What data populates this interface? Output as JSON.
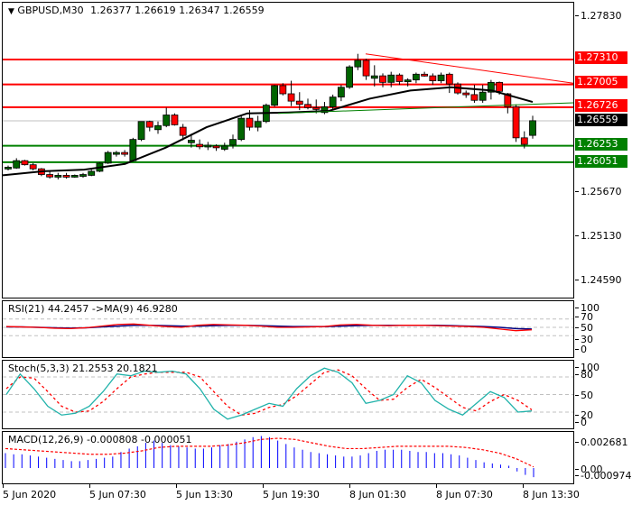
{
  "header": {
    "symbol": "GBPUSD,M30",
    "ohlc": "1.26377 1.26619 1.26347 1.26559",
    "menu_icon": "triangle-down-icon"
  },
  "colors": {
    "bull": "#006400",
    "bear": "#ff0000",
    "resistance": "#ff0000",
    "support": "#008000",
    "ma": "#000000",
    "rsi": "#ff0000",
    "rsi_ma": "#000080",
    "stoch_main": "#20b2aa",
    "stoch_signal": "#ff0000",
    "macd_hist": "#0000ff",
    "macd_signal": "#ff0000",
    "current_price_bg": "#000000"
  },
  "price_axis": {
    "ticks": [
      "1.27830",
      "1.25670",
      "1.25130",
      "1.24590"
    ],
    "levels": [
      {
        "label": "1.27310",
        "type": "resistance",
        "color": "#ff0000"
      },
      {
        "label": "1.27005",
        "type": "resistance",
        "color": "#ff0000"
      },
      {
        "label": "1.26726",
        "type": "resistance",
        "color": "#ff0000"
      },
      {
        "label": "1.26559",
        "type": "current",
        "color": "#000000"
      },
      {
        "label": "1.26253",
        "type": "support",
        "color": "#008000"
      },
      {
        "label": "1.26051",
        "type": "support",
        "color": "#008000"
      }
    ]
  },
  "rsi": {
    "legend": "RSI(21) 44.2457  ->MA(9) 46.9280",
    "ticks": [
      "100",
      "70",
      "50",
      "30",
      "0"
    ]
  },
  "stoch": {
    "legend": "Stoch(5,3,3) 21.2553 20.1821",
    "ticks": [
      "100",
      "80",
      "50",
      "20",
      "0"
    ]
  },
  "macd": {
    "legend": "MACD(12,26,9) -0.000808 -0.000051",
    "ticks": [
      "0.002681",
      "0.00",
      "-0.000974"
    ]
  },
  "time_axis": {
    "labels": [
      "5 Jun 2020",
      "5 Jun 07:30",
      "5 Jun 13:30",
      "5 Jun 19:30",
      "8 Jun 01:30",
      "8 Jun 07:30",
      "8 Jun 13:30"
    ]
  },
  "chart_data": [
    {
      "type": "candlestick",
      "title": "GBPUSD,M30",
      "subtitle": "O 1.26377 H 1.26619 L 1.26347 C 1.26559",
      "x": [
        "5 Jun 2020",
        "5 Jun 07:30",
        "5 Jun 13:30",
        "5 Jun 19:30",
        "8 Jun 01:30",
        "8 Jun 07:30",
        "8 Jun 13:30"
      ],
      "ylim": [
        1.2435,
        1.28
      ],
      "yticks": [
        1.2783,
        1.2567,
        1.2513,
        1.2459
      ],
      "horizontal_levels": {
        "resistance": [
          1.2731,
          1.27005,
          1.26726
        ],
        "support": [
          1.26253,
          1.26051
        ],
        "current": 1.26559
      },
      "series": [
        {
          "name": "Moving Average",
          "approx_path": [
            1.2589,
            1.2594,
            1.2596,
            1.2603,
            1.2623,
            1.2648,
            1.2665,
            1.2666,
            1.2668,
            1.2683,
            1.2693,
            1.2697,
            1.2693,
            1.2679
          ]
        },
        {
          "name": "Trendline (falling, red)",
          "from": 1.2738,
          "to": 1.269
        },
        {
          "name": "Trendline (rising, green)",
          "from": 1.2664,
          "to": 1.2677
        }
      ],
      "candles_approx": [
        [
          1.2597,
          1.2601,
          1.2595,
          1.2599
        ],
        [
          1.2598,
          1.261,
          1.2597,
          1.2607
        ],
        [
          1.2607,
          1.2608,
          1.2601,
          1.2602
        ],
        [
          1.2602,
          1.2604,
          1.2595,
          1.2597
        ],
        [
          1.2597,
          1.2598,
          1.2588,
          1.259
        ],
        [
          1.259,
          1.2594,
          1.2585,
          1.2587
        ],
        [
          1.2588,
          1.2592,
          1.2584,
          1.2589
        ],
        [
          1.2589,
          1.2592,
          1.2585,
          1.2588
        ],
        [
          1.2587,
          1.259,
          1.2586,
          1.2589
        ],
        [
          1.2589,
          1.2592,
          1.2586,
          1.259
        ],
        [
          1.2589,
          1.2596,
          1.2588,
          1.2594
        ],
        [
          1.2594,
          1.2605,
          1.2593,
          1.2604
        ],
        [
          1.2604,
          1.2619,
          1.2603,
          1.2617
        ],
        [
          1.2617,
          1.2619,
          1.2612,
          1.2617
        ],
        [
          1.2617,
          1.262,
          1.2612,
          1.2615
        ],
        [
          1.2607,
          1.2635,
          1.2606,
          1.2633
        ],
        [
          1.2633,
          1.2653,
          1.2631,
          1.2655
        ],
        [
          1.2655,
          1.2656,
          1.2643,
          1.2648
        ],
        [
          1.2645,
          1.2655,
          1.264,
          1.265
        ],
        [
          1.265,
          1.2672,
          1.2648,
          1.2663
        ],
        [
          1.2663,
          1.2665,
          1.265,
          1.2651
        ],
        [
          1.2648,
          1.2652,
          1.2632,
          1.2638
        ],
        [
          1.2629,
          1.264,
          1.2623,
          1.2632
        ],
        [
          1.2627,
          1.2633,
          1.2621,
          1.2624
        ],
        [
          1.2624,
          1.263,
          1.262,
          1.2626
        ],
        [
          1.2625,
          1.2627,
          1.2619,
          1.2623
        ],
        [
          1.2621,
          1.2629,
          1.2619,
          1.2625
        ],
        [
          1.2626,
          1.2639,
          1.2622,
          1.2633
        ],
        [
          1.2633,
          1.2662,
          1.2631,
          1.2659
        ],
        [
          1.2659,
          1.2669,
          1.2644,
          1.2648
        ],
        [
          1.2648,
          1.2662,
          1.2643,
          1.2655
        ],
        [
          1.2655,
          1.2677,
          1.2653,
          1.2675
        ],
        [
          1.2675,
          1.27,
          1.2673,
          1.2699
        ],
        [
          1.2699,
          1.2702,
          1.2687,
          1.2689
        ],
        [
          1.2689,
          1.2705,
          1.2674,
          1.268
        ],
        [
          1.268,
          1.2691,
          1.2669,
          1.2676
        ],
        [
          1.2676,
          1.2683,
          1.267,
          1.2672
        ],
        [
          1.2672,
          1.2682,
          1.2665,
          1.267
        ],
        [
          1.2666,
          1.2679,
          1.2664,
          1.2673
        ],
        [
          1.2673,
          1.2688,
          1.267,
          1.2685
        ],
        [
          1.2685,
          1.27,
          1.268,
          1.2697
        ],
        [
          1.2697,
          1.2724,
          1.2695,
          1.2722
        ],
        [
          1.2722,
          1.2738,
          1.2718,
          1.273
        ],
        [
          1.273,
          1.2732,
          1.2706,
          1.2711
        ],
        [
          1.2708,
          1.2724,
          1.2698,
          1.2711
        ],
        [
          1.2711,
          1.2714,
          1.2697,
          1.2703
        ],
        [
          1.2703,
          1.2716,
          1.2697,
          1.2712
        ],
        [
          1.2712,
          1.2714,
          1.27,
          1.2704
        ],
        [
          1.2704,
          1.2708,
          1.2698,
          1.2706
        ],
        [
          1.2706,
          1.2715,
          1.2702,
          1.2713
        ],
        [
          1.2713,
          1.2716,
          1.271,
          1.2712
        ],
        [
          1.2711,
          1.2714,
          1.27,
          1.2705
        ],
        [
          1.2705,
          1.2715,
          1.2702,
          1.2712
        ],
        [
          1.2713,
          1.2715,
          1.269,
          1.2701
        ],
        [
          1.2701,
          1.2703,
          1.2688,
          1.269
        ],
        [
          1.269,
          1.2693,
          1.2684,
          1.2688
        ],
        [
          1.2688,
          1.27,
          1.2678,
          1.2681
        ],
        [
          1.2681,
          1.27,
          1.2678,
          1.2691
        ],
        [
          1.2691,
          1.2706,
          1.2682,
          1.2703
        ],
        [
          1.2703,
          1.2704,
          1.2688,
          1.2692
        ],
        [
          1.2689,
          1.269,
          1.2665,
          1.2673
        ],
        [
          1.2673,
          1.2676,
          1.263,
          1.2635
        ],
        [
          1.2635,
          1.2643,
          1.2622,
          1.2627
        ],
        [
          1.2638,
          1.2662,
          1.2634,
          1.2656
        ]
      ]
    },
    {
      "type": "line",
      "title": "RSI(21) 44.2457 ->MA(9) 46.9280",
      "ylim": [
        0,
        100
      ],
      "yticks": [
        100,
        70,
        50,
        30,
        0
      ],
      "grid": [
        70,
        50,
        30
      ],
      "series": [
        {
          "name": "RSI(21)",
          "last": 44.2457
        },
        {
          "name": "MA(9)",
          "last": 46.928
        }
      ]
    },
    {
      "type": "line",
      "title": "Stoch(5,3,3) 21.2553 20.1821",
      "ylim": [
        0,
        100
      ],
      "yticks": [
        100,
        80,
        50,
        20,
        0
      ],
      "grid": [
        80,
        50,
        20
      ],
      "series": [
        {
          "name": "%K",
          "last": 21.2553
        },
        {
          "name": "%D",
          "last": 20.1821
        }
      ]
    },
    {
      "type": "bar",
      "title": "MACD(12,26,9) -0.000808 -0.000051",
      "ylim": [
        -0.000974,
        0.002681
      ],
      "yticks": [
        0.002681,
        0.0,
        -0.000974
      ],
      "series": [
        {
          "name": "MACD",
          "last": -0.000808
        },
        {
          "name": "Signal",
          "last": -5.1e-05
        }
      ]
    }
  ]
}
